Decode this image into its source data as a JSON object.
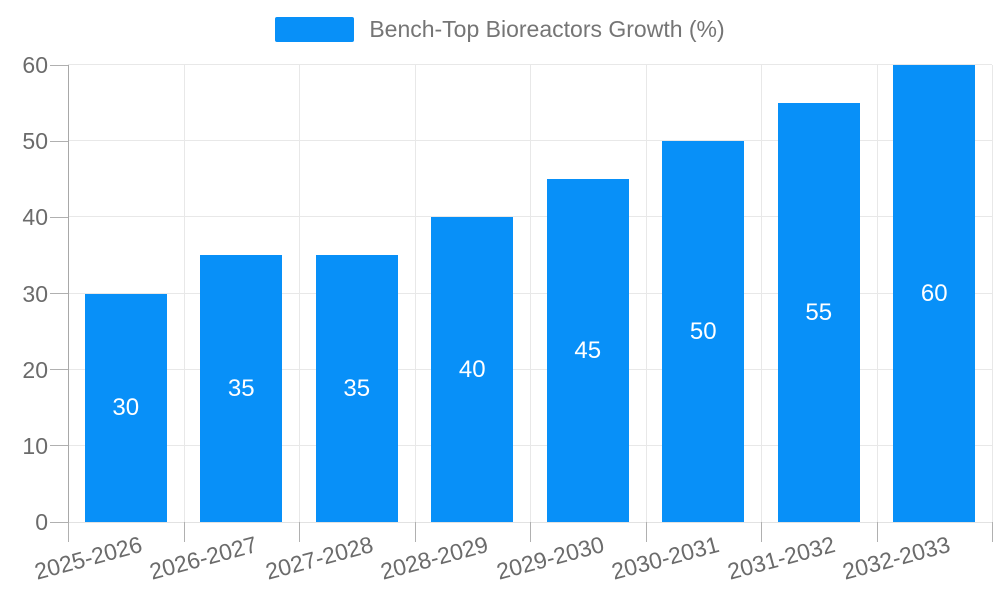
{
  "legend": {
    "label": "Bench-Top Bioreactors Growth (%)",
    "marker_color": "#0890f8",
    "text_color": "#757575"
  },
  "chart_data": {
    "type": "bar",
    "title": "Bench-Top Bioreactors Growth (%)",
    "categories": [
      "2025-2026",
      "2026-2027",
      "2027-2028",
      "2028-2029",
      "2029-2030",
      "2030-2031",
      "2031-2032",
      "2032-2033"
    ],
    "series": [
      {
        "name": "Bench-Top Bioreactors Growth (%)",
        "values": [
          30,
          35,
          35,
          40,
          45,
          50,
          55,
          60
        ]
      }
    ],
    "show_value_labels": true,
    "ylim": [
      0,
      60
    ],
    "yticks": [
      0,
      10,
      20,
      30,
      40,
      50,
      60
    ],
    "xlabel": "",
    "ylabel": "",
    "grid": {
      "horizontal": true,
      "vertical": true
    },
    "legend_position": "top",
    "x_label_rotation_deg": -15,
    "colors": {
      "bar": "#0890f8",
      "grid_line": "#e8e8e8",
      "y_axis_line": "#a8a8a8",
      "x_axis_line": "#e2e2e2",
      "tick": "#b0b0b0",
      "tick_label": "#6b6b6b",
      "value_label": "#ffffff",
      "background": "#ffffff"
    }
  }
}
